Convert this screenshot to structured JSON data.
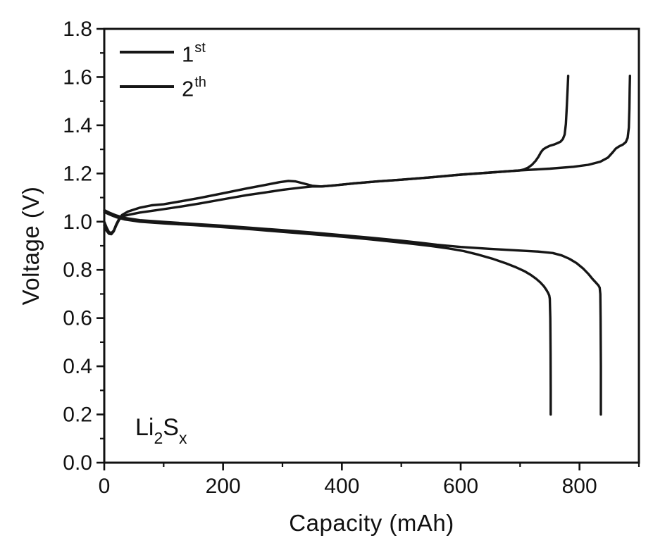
{
  "colors": {
    "background": "#ffffff",
    "axis": "#111111",
    "text": "#111111",
    "line": "#161616"
  },
  "chart_data": {
    "type": "line",
    "title": "",
    "xlabel": "Capacity (mAh)",
    "ylabel": "Voltage (V)",
    "xlim": [
      0,
      900
    ],
    "ylim": [
      0.0,
      1.8
    ],
    "grid": false,
    "legend_position": "top-left",
    "x_major_ticks": {
      "values": [
        0,
        200,
        400,
        600,
        800
      ],
      "labels": [
        "0",
        "200",
        "400",
        "600",
        "800"
      ]
    },
    "x_minor_ticks": [
      100,
      300,
      500,
      700,
      900
    ],
    "y_major_ticks": {
      "values": [
        0.0,
        0.2,
        0.4,
        0.6,
        0.8,
        1.0,
        1.2,
        1.4,
        1.6,
        1.8
      ],
      "labels": [
        "0.0",
        "0.2",
        "0.4",
        "0.6",
        "0.8",
        "1.0",
        "1.2",
        "1.4",
        "1.6",
        "1.8"
      ]
    },
    "y_minor_ticks": [
      0.1,
      0.3,
      0.5,
      0.7,
      0.9,
      1.1,
      1.3,
      1.5,
      1.7
    ],
    "series": [
      {
        "name": "cycle1-charge",
        "points": [
          [
            0,
            1.0
          ],
          [
            4,
            0.975
          ],
          [
            8,
            0.957
          ],
          [
            12,
            0.953
          ],
          [
            16,
            0.963
          ],
          [
            20,
            0.988
          ],
          [
            25,
            1.012
          ],
          [
            30,
            1.028
          ],
          [
            40,
            1.042
          ],
          [
            60,
            1.058
          ],
          [
            80,
            1.068
          ],
          [
            100,
            1.072
          ],
          [
            130,
            1.085
          ],
          [
            160,
            1.098
          ],
          [
            200,
            1.118
          ],
          [
            240,
            1.138
          ],
          [
            270,
            1.152
          ],
          [
            295,
            1.164
          ],
          [
            310,
            1.169
          ],
          [
            322,
            1.167
          ],
          [
            335,
            1.159
          ],
          [
            350,
            1.149
          ],
          [
            365,
            1.146
          ],
          [
            385,
            1.15
          ],
          [
            420,
            1.159
          ],
          [
            460,
            1.167
          ],
          [
            500,
            1.174
          ],
          [
            550,
            1.184
          ],
          [
            600,
            1.195
          ],
          [
            650,
            1.204
          ],
          [
            700,
            1.213
          ],
          [
            750,
            1.22
          ],
          [
            790,
            1.228
          ],
          [
            815,
            1.236
          ],
          [
            835,
            1.249
          ],
          [
            848,
            1.266
          ],
          [
            856,
            1.288
          ],
          [
            861,
            1.303
          ],
          [
            867,
            1.313
          ],
          [
            873,
            1.32
          ],
          [
            878,
            1.33
          ],
          [
            881,
            1.348
          ],
          [
            883,
            1.39
          ],
          [
            884,
            1.47
          ],
          [
            884.5,
            1.55
          ],
          [
            885,
            1.605
          ]
        ]
      },
      {
        "name": "cycle1-discharge",
        "points": [
          [
            0,
            1.048
          ],
          [
            10,
            1.036
          ],
          [
            20,
            1.026
          ],
          [
            35,
            1.015
          ],
          [
            60,
            1.006
          ],
          [
            100,
            0.999
          ],
          [
            150,
            0.991
          ],
          [
            200,
            0.983
          ],
          [
            250,
            0.974
          ],
          [
            300,
            0.965
          ],
          [
            350,
            0.955
          ],
          [
            400,
            0.944
          ],
          [
            450,
            0.933
          ],
          [
            500,
            0.921
          ],
          [
            530,
            0.913
          ],
          [
            560,
            0.904
          ],
          [
            600,
            0.895
          ],
          [
            650,
            0.887
          ],
          [
            700,
            0.88
          ],
          [
            730,
            0.876
          ],
          [
            755,
            0.87
          ],
          [
            770,
            0.86
          ],
          [
            783,
            0.846
          ],
          [
            795,
            0.828
          ],
          [
            806,
            0.806
          ],
          [
            815,
            0.783
          ],
          [
            822,
            0.762
          ],
          [
            828,
            0.746
          ],
          [
            832,
            0.735
          ],
          [
            834,
            0.726
          ],
          [
            835,
            0.7
          ],
          [
            835.5,
            0.6
          ],
          [
            836,
            0.4
          ],
          [
            836,
            0.2
          ]
        ]
      },
      {
        "name": "cycle2-charge",
        "points": [
          [
            0,
            0.985
          ],
          [
            4,
            0.962
          ],
          [
            8,
            0.95
          ],
          [
            12,
            0.948
          ],
          [
            16,
            0.96
          ],
          [
            20,
            0.984
          ],
          [
            25,
            1.008
          ],
          [
            30,
            1.022
          ],
          [
            40,
            1.028
          ],
          [
            60,
            1.038
          ],
          [
            80,
            1.045
          ],
          [
            100,
            1.052
          ],
          [
            130,
            1.063
          ],
          [
            160,
            1.075
          ],
          [
            200,
            1.093
          ],
          [
            240,
            1.11
          ],
          [
            270,
            1.121
          ],
          [
            300,
            1.132
          ],
          [
            330,
            1.141
          ],
          [
            350,
            1.146
          ],
          [
            365,
            1.146
          ],
          [
            385,
            1.15
          ],
          [
            420,
            1.159
          ],
          [
            460,
            1.167
          ],
          [
            500,
            1.174
          ],
          [
            550,
            1.184
          ],
          [
            600,
            1.195
          ],
          [
            650,
            1.204
          ],
          [
            700,
            1.213
          ],
          [
            707,
            1.217
          ],
          [
            714,
            1.225
          ],
          [
            720,
            1.236
          ],
          [
            726,
            1.252
          ],
          [
            731,
            1.27
          ],
          [
            735,
            1.288
          ],
          [
            739,
            1.3
          ],
          [
            744,
            1.308
          ],
          [
            750,
            1.315
          ],
          [
            757,
            1.32
          ],
          [
            763,
            1.326
          ],
          [
            768,
            1.332
          ],
          [
            772,
            1.343
          ],
          [
            775,
            1.362
          ],
          [
            777,
            1.405
          ],
          [
            778.5,
            1.47
          ],
          [
            780,
            1.55
          ],
          [
            781,
            1.605
          ]
        ]
      },
      {
        "name": "cycle2-discharge",
        "points": [
          [
            0,
            1.04
          ],
          [
            10,
            1.029
          ],
          [
            20,
            1.019
          ],
          [
            35,
            1.009
          ],
          [
            60,
            1.0
          ],
          [
            100,
            0.993
          ],
          [
            150,
            0.986
          ],
          [
            200,
            0.977
          ],
          [
            250,
            0.968
          ],
          [
            300,
            0.958
          ],
          [
            350,
            0.948
          ],
          [
            400,
            0.938
          ],
          [
            450,
            0.926
          ],
          [
            490,
            0.916
          ],
          [
            520,
            0.908
          ],
          [
            550,
            0.899
          ],
          [
            580,
            0.889
          ],
          [
            605,
            0.878
          ],
          [
            630,
            0.863
          ],
          [
            655,
            0.845
          ],
          [
            675,
            0.828
          ],
          [
            693,
            0.811
          ],
          [
            707,
            0.795
          ],
          [
            718,
            0.779
          ],
          [
            727,
            0.763
          ],
          [
            734,
            0.748
          ],
          [
            740,
            0.732
          ],
          [
            744,
            0.718
          ],
          [
            747,
            0.705
          ],
          [
            749,
            0.694
          ],
          [
            750,
            0.68
          ],
          [
            750.8,
            0.6
          ],
          [
            751.3,
            0.45
          ],
          [
            751.5,
            0.3
          ],
          [
            751.5,
            0.2
          ]
        ]
      }
    ]
  },
  "legend": {
    "entries": [
      {
        "base": "1",
        "sup": "st"
      },
      {
        "base": "2",
        "sup": "th"
      }
    ]
  },
  "annotation": {
    "base1": "Li",
    "sub1": "2",
    "base2": "S",
    "sub2": "x"
  }
}
